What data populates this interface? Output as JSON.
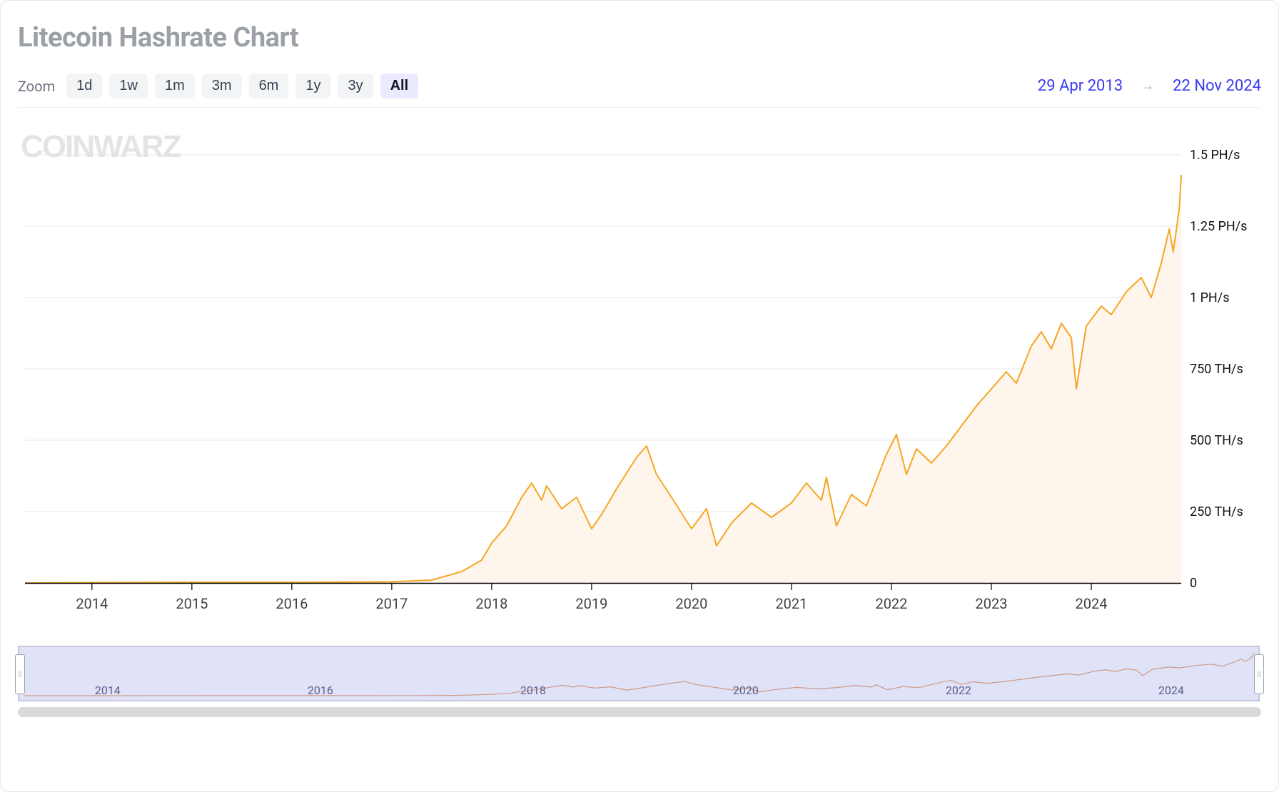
{
  "title": "Litecoin Hashrate Chart",
  "watermark": "CoinWarz",
  "zoom": {
    "label": "Zoom",
    "options": [
      "1d",
      "1w",
      "1m",
      "3m",
      "6m",
      "1y",
      "3y",
      "All"
    ],
    "active": "All"
  },
  "date_range": {
    "from": "29 Apr 2013",
    "to": "22 Nov 2024",
    "arrow": "→"
  },
  "chart": {
    "type": "area-line",
    "line_color": "#f5a623",
    "line_width": 2,
    "fill_color": "#fef6ec",
    "grid_color": "#e6e6e6",
    "axis_color": "#000000",
    "background_color": "#ffffff",
    "y_max": 1.5,
    "y_min": 0,
    "y_ticks": [
      {
        "value": 0,
        "label": "0"
      },
      {
        "value": 0.25,
        "label": "250 TH/s"
      },
      {
        "value": 0.5,
        "label": "500 TH/s"
      },
      {
        "value": 0.75,
        "label": "750 TH/s"
      },
      {
        "value": 1.0,
        "label": "1 PH/s"
      },
      {
        "value": 1.25,
        "label": "1.25 PH/s"
      },
      {
        "value": 1.5,
        "label": "1.5 PH/s"
      }
    ],
    "x_min_year": 2013.33,
    "x_max_year": 2024.9,
    "x_ticks": [
      "2014",
      "2015",
      "2016",
      "2017",
      "2018",
      "2019",
      "2020",
      "2021",
      "2022",
      "2023",
      "2024"
    ],
    "series": [
      {
        "x": 2013.33,
        "y": 0.0
      },
      {
        "x": 2014.0,
        "y": 0.001
      },
      {
        "x": 2015.0,
        "y": 0.002
      },
      {
        "x": 2016.0,
        "y": 0.002
      },
      {
        "x": 2017.0,
        "y": 0.004
      },
      {
        "x": 2017.4,
        "y": 0.01
      },
      {
        "x": 2017.7,
        "y": 0.04
      },
      {
        "x": 2017.9,
        "y": 0.08
      },
      {
        "x": 2018.0,
        "y": 0.14
      },
      {
        "x": 2018.15,
        "y": 0.2
      },
      {
        "x": 2018.3,
        "y": 0.3
      },
      {
        "x": 2018.4,
        "y": 0.35
      },
      {
        "x": 2018.5,
        "y": 0.29
      },
      {
        "x": 2018.55,
        "y": 0.34
      },
      {
        "x": 2018.7,
        "y": 0.26
      },
      {
        "x": 2018.85,
        "y": 0.3
      },
      {
        "x": 2019.0,
        "y": 0.19
      },
      {
        "x": 2019.1,
        "y": 0.24
      },
      {
        "x": 2019.25,
        "y": 0.33
      },
      {
        "x": 2019.45,
        "y": 0.44
      },
      {
        "x": 2019.55,
        "y": 0.48
      },
      {
        "x": 2019.65,
        "y": 0.38
      },
      {
        "x": 2019.8,
        "y": 0.3
      },
      {
        "x": 2020.0,
        "y": 0.19
      },
      {
        "x": 2020.15,
        "y": 0.26
      },
      {
        "x": 2020.25,
        "y": 0.13
      },
      {
        "x": 2020.4,
        "y": 0.21
      },
      {
        "x": 2020.6,
        "y": 0.28
      },
      {
        "x": 2020.8,
        "y": 0.23
      },
      {
        "x": 2021.0,
        "y": 0.28
      },
      {
        "x": 2021.15,
        "y": 0.35
      },
      {
        "x": 2021.3,
        "y": 0.29
      },
      {
        "x": 2021.35,
        "y": 0.37
      },
      {
        "x": 2021.45,
        "y": 0.2
      },
      {
        "x": 2021.6,
        "y": 0.31
      },
      {
        "x": 2021.75,
        "y": 0.27
      },
      {
        "x": 2021.95,
        "y": 0.45
      },
      {
        "x": 2022.05,
        "y": 0.52
      },
      {
        "x": 2022.15,
        "y": 0.38
      },
      {
        "x": 2022.25,
        "y": 0.47
      },
      {
        "x": 2022.4,
        "y": 0.42
      },
      {
        "x": 2022.55,
        "y": 0.48
      },
      {
        "x": 2022.7,
        "y": 0.55
      },
      {
        "x": 2022.85,
        "y": 0.62
      },
      {
        "x": 2023.0,
        "y": 0.68
      },
      {
        "x": 2023.15,
        "y": 0.74
      },
      {
        "x": 2023.25,
        "y": 0.7
      },
      {
        "x": 2023.4,
        "y": 0.83
      },
      {
        "x": 2023.5,
        "y": 0.88
      },
      {
        "x": 2023.6,
        "y": 0.82
      },
      {
        "x": 2023.7,
        "y": 0.91
      },
      {
        "x": 2023.8,
        "y": 0.86
      },
      {
        "x": 2023.85,
        "y": 0.68
      },
      {
        "x": 2023.95,
        "y": 0.9
      },
      {
        "x": 2024.1,
        "y": 0.97
      },
      {
        "x": 2024.2,
        "y": 0.94
      },
      {
        "x": 2024.35,
        "y": 1.02
      },
      {
        "x": 2024.5,
        "y": 1.07
      },
      {
        "x": 2024.6,
        "y": 1.0
      },
      {
        "x": 2024.7,
        "y": 1.12
      },
      {
        "x": 2024.78,
        "y": 1.24
      },
      {
        "x": 2024.82,
        "y": 1.16
      },
      {
        "x": 2024.88,
        "y": 1.31
      },
      {
        "x": 2024.9,
        "y": 1.43
      }
    ]
  },
  "navigator": {
    "background": "#c7caf1",
    "border": "#b0b2d6",
    "mini_line_color": "#cf9b88",
    "ticks": [
      "2014",
      "2016",
      "2018",
      "2020",
      "2022",
      "2024"
    ]
  }
}
